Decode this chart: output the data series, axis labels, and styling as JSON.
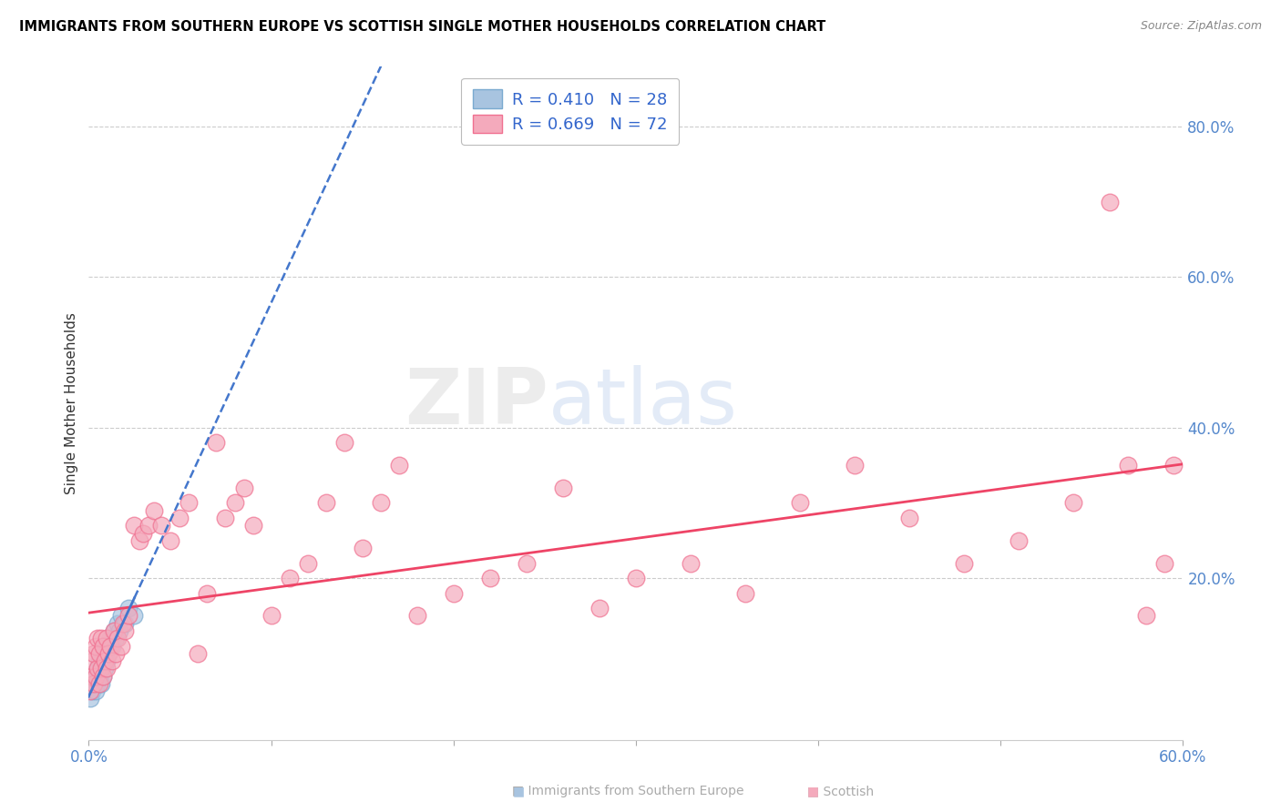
{
  "title": "IMMIGRANTS FROM SOUTHERN EUROPE VS SCOTTISH SINGLE MOTHER HOUSEHOLDS CORRELATION CHART",
  "source": "Source: ZipAtlas.com",
  "ylabel": "Single Mother Households",
  "xmin": 0.0,
  "xmax": 0.6,
  "ymin": -0.015,
  "ymax": 0.88,
  "blue_R": 0.41,
  "blue_N": 28,
  "pink_R": 0.669,
  "pink_N": 72,
  "blue_color": "#A8C4E0",
  "pink_color": "#F4AABC",
  "blue_edge_color": "#7aaad0",
  "pink_edge_color": "#f07090",
  "blue_line_color": "#4477CC",
  "pink_line_color": "#EE4466",
  "watermark_zip": "ZIP",
  "watermark_atlas": "atlas",
  "blue_scatter_x": [
    0.001,
    0.002,
    0.003,
    0.004,
    0.004,
    0.005,
    0.005,
    0.006,
    0.006,
    0.007,
    0.007,
    0.008,
    0.008,
    0.009,
    0.009,
    0.01,
    0.01,
    0.011,
    0.012,
    0.013,
    0.014,
    0.015,
    0.016,
    0.017,
    0.018,
    0.02,
    0.022,
    0.025
  ],
  "blue_scatter_y": [
    0.04,
    0.05,
    0.06,
    0.05,
    0.07,
    0.06,
    0.08,
    0.07,
    0.09,
    0.06,
    0.08,
    0.07,
    0.09,
    0.08,
    0.1,
    0.09,
    0.11,
    0.1,
    0.12,
    0.11,
    0.13,
    0.12,
    0.14,
    0.13,
    0.15,
    0.14,
    0.16,
    0.15
  ],
  "pink_scatter_x": [
    0.001,
    0.002,
    0.002,
    0.003,
    0.003,
    0.004,
    0.004,
    0.005,
    0.005,
    0.006,
    0.006,
    0.007,
    0.007,
    0.008,
    0.008,
    0.009,
    0.01,
    0.01,
    0.011,
    0.012,
    0.013,
    0.014,
    0.015,
    0.016,
    0.018,
    0.019,
    0.02,
    0.022,
    0.025,
    0.028,
    0.03,
    0.033,
    0.036,
    0.04,
    0.045,
    0.05,
    0.055,
    0.06,
    0.065,
    0.07,
    0.075,
    0.08,
    0.085,
    0.09,
    0.1,
    0.11,
    0.12,
    0.13,
    0.14,
    0.15,
    0.16,
    0.17,
    0.18,
    0.2,
    0.22,
    0.24,
    0.26,
    0.28,
    0.3,
    0.33,
    0.36,
    0.39,
    0.42,
    0.45,
    0.48,
    0.51,
    0.54,
    0.56,
    0.57,
    0.58,
    0.59,
    0.595
  ],
  "pink_scatter_y": [
    0.05,
    0.07,
    0.09,
    0.06,
    0.1,
    0.07,
    0.11,
    0.08,
    0.12,
    0.06,
    0.1,
    0.08,
    0.12,
    0.07,
    0.11,
    0.09,
    0.08,
    0.12,
    0.1,
    0.11,
    0.09,
    0.13,
    0.1,
    0.12,
    0.11,
    0.14,
    0.13,
    0.15,
    0.27,
    0.25,
    0.26,
    0.27,
    0.29,
    0.27,
    0.25,
    0.28,
    0.3,
    0.1,
    0.18,
    0.38,
    0.28,
    0.3,
    0.32,
    0.27,
    0.15,
    0.2,
    0.22,
    0.3,
    0.38,
    0.24,
    0.3,
    0.35,
    0.15,
    0.18,
    0.2,
    0.22,
    0.32,
    0.16,
    0.2,
    0.22,
    0.18,
    0.3,
    0.35,
    0.28,
    0.22,
    0.25,
    0.3,
    0.7,
    0.35,
    0.15,
    0.22,
    0.35
  ]
}
